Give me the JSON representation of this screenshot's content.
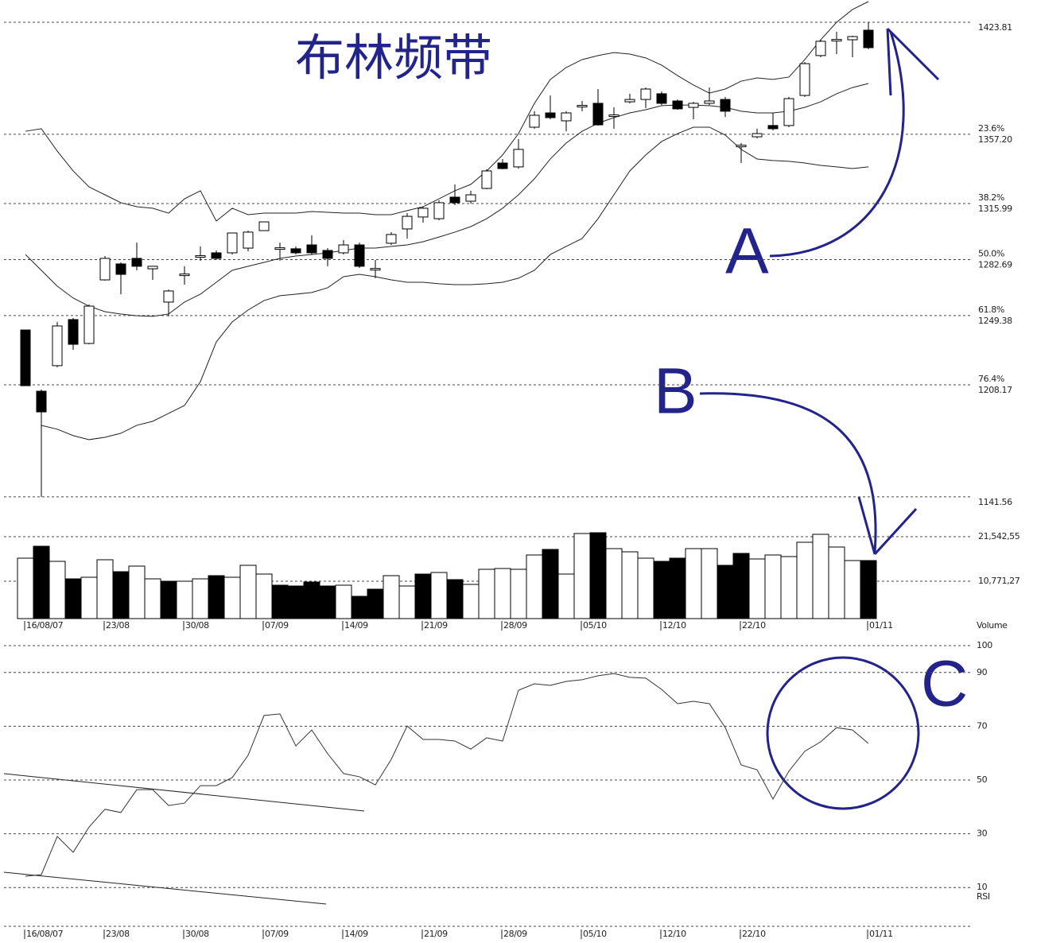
{
  "chart_data": [
    {
      "type": "candlestick",
      "title": "布林频带",
      "annotations": [
        "A",
        "B"
      ],
      "open": [
        1240.8,
        1204.4,
        1219.6,
        1247.0,
        1232.8,
        1270.6,
        1280.1,
        1283.4,
        1277.2,
        1257.4,
        1273.9,
        1284.8,
        1286.7,
        1286.7,
        1289.5,
        1299.9,
        1289.5,
        1289.1,
        1291.4,
        1288.1,
        1286.7,
        1291.4,
        1277.2,
        1292.4,
        1300.9,
        1308.0,
        1307.0,
        1319.8,
        1317.4,
        1325.0,
        1340.1,
        1337.8,
        1361.4,
        1369.9,
        1365.2,
        1374.2,
        1375.6,
        1368.5,
        1376.5,
        1377.9,
        1381.3,
        1377.0,
        1373.2,
        1375.6,
        1377.9,
        1350.5,
        1355.7,
        1362.4,
        1362.4,
        1380.3,
        1404.0,
        1413.4,
        1413.4,
        1419.1
      ],
      "close": [
        1207.7,
        1192.1,
        1243.2,
        1232.3,
        1255.0,
        1283.4,
        1273.9,
        1278.7,
        1278.7,
        1264.0,
        1274.1,
        1285.0,
        1283.4,
        1298.5,
        1299.0,
        1305.1,
        1289.7,
        1286.7,
        1286.7,
        1283.4,
        1291.4,
        1278.7,
        1277.4,
        1297.6,
        1308.4,
        1313.2,
        1316.5,
        1316.5,
        1321.2,
        1335.4,
        1336.8,
        1348.2,
        1368.5,
        1367.1,
        1369.9,
        1374.4,
        1362.8,
        1368.7,
        1377.9,
        1384.1,
        1375.6,
        1372.3,
        1375.6,
        1377.0,
        1370.9,
        1350.7,
        1357.6,
        1360.5,
        1378.4,
        1399.2,
        1412.5,
        1413.6,
        1415.3,
        1408.7
      ],
      "high": [
        1240.8,
        1205.4,
        1245.6,
        1247.9,
        1256.0,
        1284.8,
        1281.0,
        1292.8,
        1278.7,
        1264.9,
        1278.7,
        1290.5,
        1288.1,
        1298.5,
        1299.9,
        1305.1,
        1292.8,
        1290.5,
        1297.1,
        1289.5,
        1294.3,
        1292.8,
        1282.5,
        1299.0,
        1310.3,
        1314.1,
        1317.9,
        1327.4,
        1323.6,
        1336.4,
        1342.5,
        1354.3,
        1370.9,
        1380.3,
        1370.9,
        1377.0,
        1384.1,
        1373.2,
        1381.3,
        1385.0,
        1382.7,
        1377.9,
        1376.5,
        1385.0,
        1379.4,
        1352.0,
        1360.5,
        1369.9,
        1379.4,
        1400.2,
        1413.4,
        1418.2,
        1415.8,
        1423.8
      ],
      "low": [
        1207.7,
        1141.6,
        1218.6,
        1229.0,
        1232.3,
        1270.2,
        1262.1,
        1276.3,
        1270.6,
        1248.9,
        1267.8,
        1282.0,
        1282.5,
        1285.7,
        1287.6,
        1299.9,
        1282.0,
        1285.7,
        1285.7,
        1278.7,
        1285.7,
        1277.7,
        1271.6,
        1291.4,
        1295.2,
        1304.6,
        1306.1,
        1315.1,
        1316.0,
        1324.5,
        1336.4,
        1336.8,
        1360.5,
        1366.1,
        1359.0,
        1370.9,
        1362.4,
        1360.5,
        1375.6,
        1372.8,
        1374.6,
        1371.8,
        1366.1,
        1374.6,
        1367.5,
        1340.1,
        1354.8,
        1359.5,
        1361.4,
        1379.4,
        1403.0,
        1404.9,
        1403.0,
        1407.8
      ],
      "bands": {
        "upper": [
          1359.0,
          1360.5,
          1347.2,
          1335.4,
          1325.9,
          1321.2,
          1316.5,
          1314.1,
          1313.2,
          1310.3,
          1318.8,
          1323.6,
          1305.6,
          1313.2,
          1309.4,
          1310.3,
          1310.3,
          1310.3,
          1311.3,
          1310.8,
          1310.3,
          1310.3,
          1309.4,
          1309.4,
          1311.8,
          1314.1,
          1318.8,
          1323.6,
          1327.4,
          1335.4,
          1344.9,
          1357.6,
          1375.6,
          1389.8,
          1396.9,
          1401.6,
          1404.0,
          1405.8,
          1404.9,
          1402.6,
          1398.3,
          1392.1,
          1386.5,
          1381.7,
          1384.1,
          1388.8,
          1390.7,
          1389.8,
          1391.2,
          1401.6,
          1413.4,
          1423.8,
          1431.4,
          1436.1
        ],
        "middle": [
          1285.7,
          1276.3,
          1266.9,
          1259.8,
          1255.0,
          1251.7,
          1250.3,
          1249.3,
          1248.9,
          1250.3,
          1257.4,
          1262.1,
          1269.2,
          1276.3,
          1278.7,
          1281.0,
          1283.4,
          1284.8,
          1285.7,
          1286.7,
          1288.1,
          1289.5,
          1289.5,
          1290.5,
          1291.4,
          1293.3,
          1296.1,
          1299.0,
          1302.3,
          1307.0,
          1313.2,
          1321.2,
          1330.7,
          1342.5,
          1352.0,
          1359.0,
          1363.8,
          1367.1,
          1369.9,
          1371.8,
          1374.2,
          1374.6,
          1374.6,
          1374.2,
          1373.2,
          1370.9,
          1369.9,
          1369.9,
          1370.9,
          1373.2,
          1376.5,
          1381.3,
          1385.0,
          1387.4
        ],
        "lower": [
          null,
          1184.1,
          1181.8,
          1178.0,
          1175.6,
          1177.0,
          1179.4,
          1184.1,
          1186.5,
          1191.2,
          1195.9,
          1210.1,
          1233.7,
          1245.6,
          1252.7,
          1258.3,
          1261.2,
          1262.1,
          1263.1,
          1265.9,
          1272.5,
          1273.9,
          1272.5,
          1270.6,
          1269.2,
          1269.2,
          1268.3,
          1267.8,
          1267.8,
          1268.3,
          1269.2,
          1271.6,
          1276.3,
          1285.7,
          1290.5,
          1295.2,
          1307.0,
          1321.2,
          1335.4,
          1344.9,
          1352.9,
          1357.6,
          1361.4,
          1361.4,
          1356.7,
          1348.2,
          1342.5,
          1341.6,
          1341.1,
          1340.1,
          1338.7,
          1337.8,
          1336.8,
          1337.8
        ]
      },
      "up_color": "#ffffff",
      "down_color": "#000000",
      "ylim": [
        1129.7,
        1437.05
      ],
      "yticks": [
        {
          "value": 1423.81,
          "label": "1423.81"
        },
        {
          "value": 1357.2,
          "label": "1357.20"
        },
        {
          "value": 1315.99,
          "label": "1315.99"
        },
        {
          "value": 1282.69,
          "label": "1282.69"
        },
        {
          "value": 1249.38,
          "label": "1249.38"
        },
        {
          "value": 1208.17,
          "label": "1208.17"
        },
        {
          "value": 1141.56,
          "label": "1141.56"
        }
      ],
      "fib_labels": [
        null,
        "23.6%",
        "38.2%",
        "50.0%",
        "61.8%",
        "76.4%",
        null
      ]
    },
    {
      "type": "bar",
      "axis_label": "Volume",
      "categories": [
        "16/08/07",
        null,
        null,
        null,
        null,
        "23/08",
        null,
        null,
        null,
        null,
        "30/08",
        null,
        null,
        null,
        null,
        "07/09",
        null,
        null,
        null,
        null,
        "14/09",
        null,
        null,
        null,
        null,
        "21/09",
        null,
        null,
        null,
        null,
        "28/09",
        null,
        null,
        null,
        null,
        "05/10",
        null,
        null,
        null,
        null,
        "12/10",
        null,
        null,
        null,
        null,
        "22/10",
        null,
        null,
        null,
        null,
        null,
        null,
        null,
        "01/11"
      ],
      "values": [
        16349,
        19234,
        15580,
        11348,
        11733,
        15964,
        13079,
        14426,
        11348,
        10771,
        10771,
        11348,
        12117,
        11733,
        14618,
        12502,
        9809,
        9617,
        10579,
        9617,
        9809,
        7117,
        8848,
        12117,
        9617,
        12502,
        12887,
        11156,
        10002,
        13656,
        13848,
        13656,
        17118,
        18465,
        12502,
        22311,
        22504,
        18657,
        17888,
        16349,
        15580,
        16349,
        18657,
        18657,
        14618,
        17503,
        16157,
        17118,
        16734,
        20196,
        22119,
        19042,
        15772,
        15772
      ],
      "colors": [
        "#ffffff",
        "#000000",
        "#ffffff",
        "#000000",
        "#ffffff",
        "#ffffff",
        "#000000",
        "#ffffff",
        "#ffffff",
        "#000000",
        "#ffffff",
        "#ffffff",
        "#000000",
        "#ffffff",
        "#ffffff",
        "#ffffff",
        "#000000",
        "#000000",
        "#000000",
        "#000000",
        "#ffffff",
        "#000000",
        "#000000",
        "#ffffff",
        "#ffffff",
        "#000000",
        "#ffffff",
        "#000000",
        "#ffffff",
        "#ffffff",
        "#ffffff",
        "#ffffff",
        "#ffffff",
        "#000000",
        "#ffffff",
        "#ffffff",
        "#000000",
        "#ffffff",
        "#ffffff",
        "#ffffff",
        "#000000",
        "#000000",
        "#ffffff",
        "#ffffff",
        "#000000",
        "#000000",
        "#ffffff",
        "#ffffff",
        "#ffffff",
        "#ffffff",
        "#ffffff",
        "#ffffff",
        "#ffffff",
        "#000000"
      ],
      "ylim": [
        1731,
        25389
      ],
      "yticks": [
        {
          "value": 21542.55,
          "label": "21,542,55"
        },
        {
          "value": 10771.27,
          "label": "10,771,27"
        }
      ]
    },
    {
      "type": "line",
      "axis_label": "RSI",
      "annotations": [
        "C"
      ],
      "color": "#333333",
      "categories": [
        "16/08/07",
        null,
        null,
        null,
        null,
        "23/08",
        null,
        null,
        null,
        null,
        "30/08",
        null,
        null,
        null,
        null,
        "07/09",
        null,
        null,
        null,
        null,
        "14/09",
        null,
        null,
        null,
        null,
        "21/09",
        null,
        null,
        null,
        null,
        "28/09",
        null,
        null,
        null,
        null,
        "05/10",
        null,
        null,
        null,
        null,
        "12/10",
        null,
        null,
        null,
        null,
        "22/10",
        null,
        null,
        null,
        null,
        null,
        null,
        null,
        "01/11"
      ],
      "values": [
        14.2,
        14.8,
        29.0,
        23.1,
        32.5,
        39.1,
        37.9,
        46.4,
        46.4,
        40.5,
        41.4,
        47.9,
        47.9,
        50.9,
        59.2,
        74.0,
        74.6,
        62.7,
        68.6,
        59.8,
        52.4,
        51.2,
        48.2,
        57.7,
        70.1,
        65.1,
        65.1,
        64.5,
        61.5,
        65.7,
        64.5,
        83.4,
        85.8,
        85.2,
        86.7,
        87.3,
        88.8,
        89.6,
        88.2,
        87.9,
        83.7,
        78.4,
        79.3,
        78.4,
        69.5,
        55.6,
        53.8,
        42.9,
        53.3,
        60.7,
        64.2,
        69.5,
        68.6,
        63.6
      ],
      "ylim": [
        0,
        103.55
      ],
      "yticks": [
        100,
        90,
        70,
        50,
        30,
        10
      ]
    }
  ]
}
